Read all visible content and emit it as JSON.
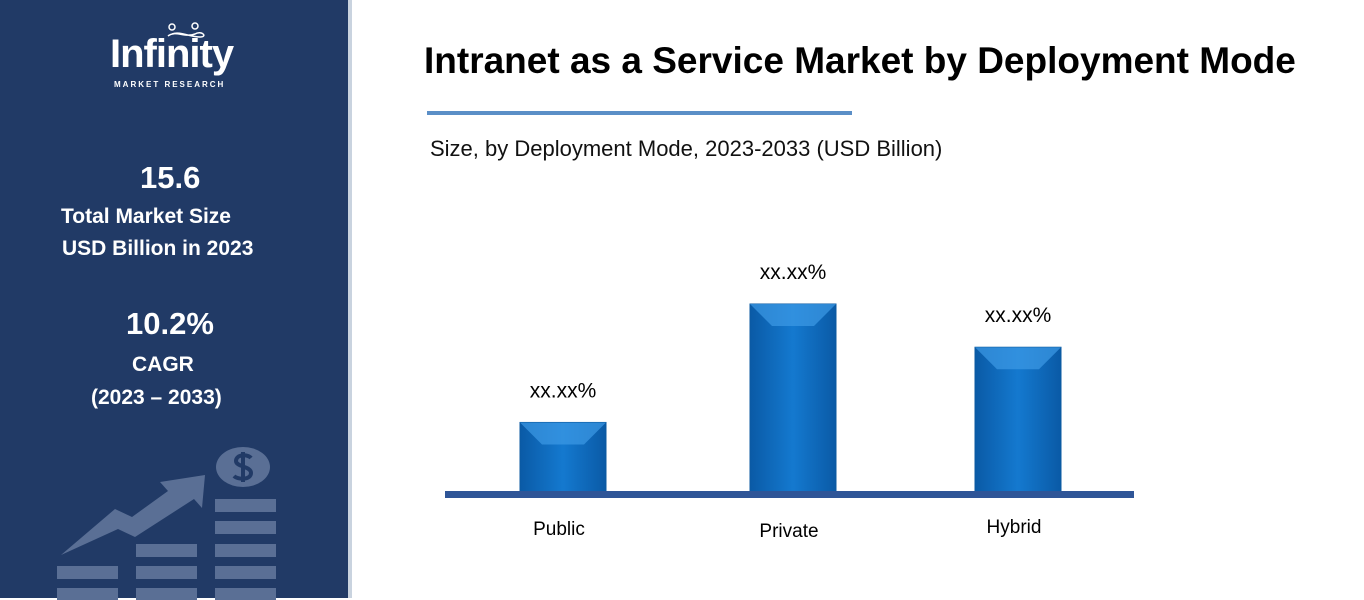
{
  "sidebar": {
    "logo_text": "Infinity",
    "logo_subtext": "MARKET RESEARCH",
    "market_size_value": "15.6",
    "market_size_label_1": "Total Market Size",
    "market_size_label_2": "USD Billion in 2023",
    "cagr_value": "10.2%",
    "cagr_label": "CAGR",
    "cagr_period": "(2023 – 2033)",
    "background_color": "#213a66",
    "illustration_icon": "growth-chart-dollar-icon"
  },
  "chart_data": {
    "type": "bar",
    "title": "Intranet as a Service Market by Deployment Mode",
    "subtitle": "Size, by Deployment Mode, 2023-2033 (USD Billion)",
    "categories": [
      "Public",
      "Private",
      "Hybrid"
    ],
    "values": [
      0.37,
      1.0,
      0.77
    ],
    "data_labels": [
      "xx.xx%",
      "xx.xx%",
      "xx.xx%"
    ],
    "bar_color": "#0f6fc0",
    "baseline_color": "#2f5597",
    "grid": false,
    "legend": "none"
  }
}
